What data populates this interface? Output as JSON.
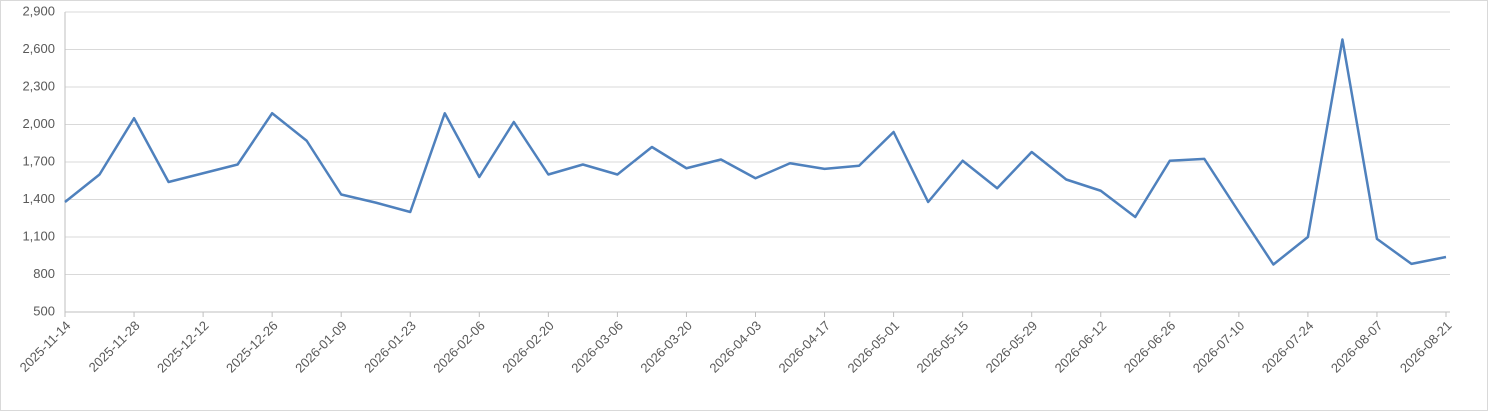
{
  "chart_data": {
    "type": "line",
    "x": [
      "2025-11-14",
      null,
      "2025-11-28",
      null,
      "2025-12-12",
      null,
      "2025-12-26",
      null,
      "2026-01-09",
      null,
      "2026-01-23",
      null,
      "2026-02-06",
      null,
      "2026-02-20",
      null,
      "2026-03-06",
      null,
      "2026-03-20",
      null,
      "2026-04-03",
      null,
      "2026-04-17",
      null,
      "2026-05-01",
      null,
      "2026-05-15",
      null,
      "2026-05-29",
      null,
      "2026-06-12",
      null,
      "2026-06-26",
      null,
      "2026-07-10",
      null,
      "2026-07-24",
      null,
      "2026-08-07",
      null,
      "2026-08-21"
    ],
    "series": [
      {
        "color": "#4f81bd",
        "values": [
          1380,
          1600,
          2050,
          1540,
          1610,
          1680,
          2090,
          1870,
          1440,
          1375,
          1300,
          2090,
          1580,
          2020,
          1600,
          1680,
          1600,
          1820,
          1650,
          1720,
          1570,
          1690,
          1645,
          1670,
          1940,
          1380,
          1710,
          1490,
          1780,
          1560,
          1470,
          1260,
          1710,
          1725,
          1300,
          880,
          1100,
          2680,
          1085,
          885,
          940
        ]
      }
    ],
    "ylim": [
      500,
      2900
    ],
    "yticks": [
      {
        "value": 500,
        "label": "500"
      },
      {
        "value": 800,
        "label": "800"
      },
      {
        "value": 1100,
        "label": "1,100"
      },
      {
        "value": 1400,
        "label": "1,400"
      },
      {
        "value": 1700,
        "label": "1,700"
      },
      {
        "value": 2000,
        "label": "2,000"
      },
      {
        "value": 2300,
        "label": "2,300"
      },
      {
        "value": 2600,
        "label": "2,600"
      },
      {
        "value": 2900,
        "label": "2,900"
      }
    ],
    "grid": true
  }
}
